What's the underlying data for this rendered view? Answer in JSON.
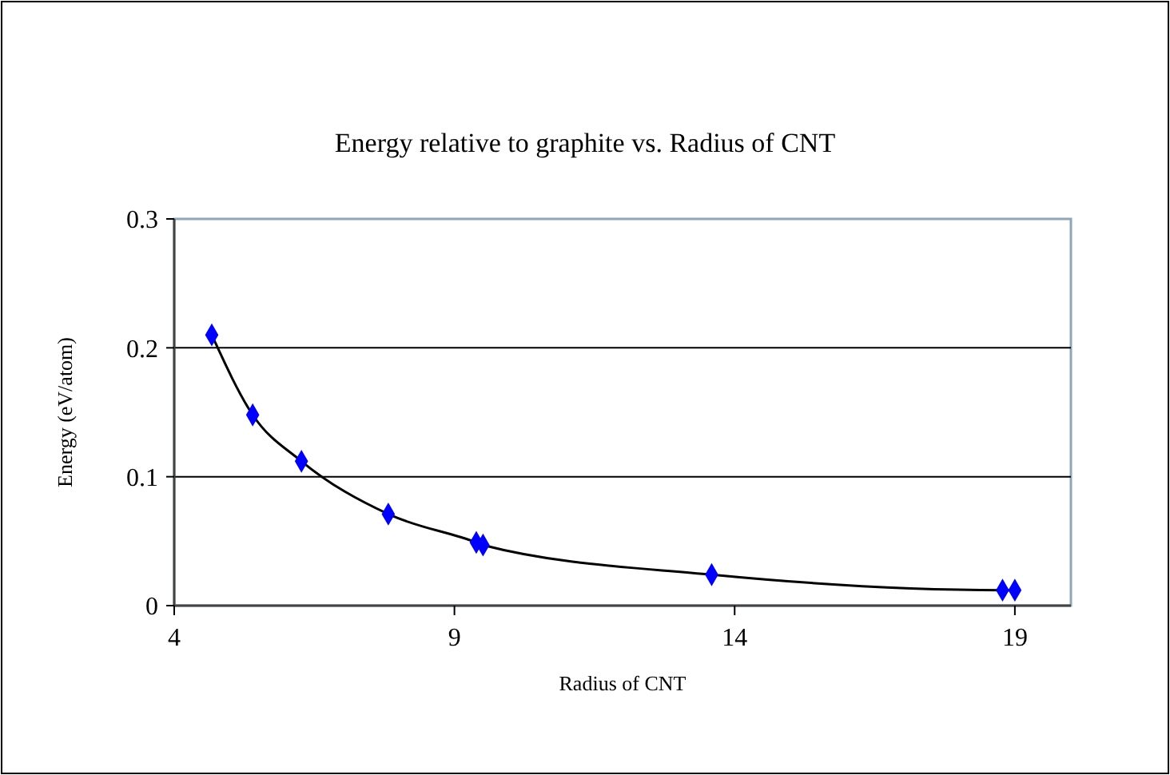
{
  "chart_data": {
    "type": "line",
    "title": "Energy relative to graphite vs. Radius of CNT",
    "xlabel": "Radius of CNT",
    "ylabel": "Energy (eV/atom)",
    "x": [
      4.67,
      5.4,
      6.27,
      7.82,
      9.39,
      9.51,
      13.59,
      18.78,
      19.0
    ],
    "series": [
      {
        "color": "#0000ff",
        "values": [
          0.21,
          0.148,
          0.112,
          0.071,
          0.049,
          0.047,
          0.024,
          0.012,
          0.012
        ]
      }
    ],
    "xlim": [
      4,
      20
    ],
    "xticks": [
      4,
      9,
      14,
      19
    ],
    "ylim": [
      0,
      0.3
    ],
    "yticks": [
      0,
      0.1,
      0.2,
      0.3
    ],
    "grid": "y",
    "marker": "diamond",
    "line_style": "solid"
  }
}
